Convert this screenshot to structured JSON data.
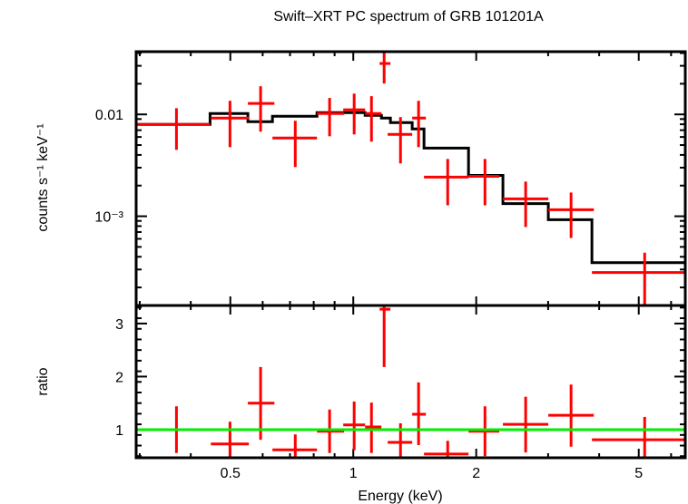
{
  "chart_data": [
    {
      "type": "scatter",
      "panel": "spectrum",
      "title": "Swift–XRT PC spectrum of GRB 101201A",
      "xlabel": "Energy (keV)",
      "ylabel": "counts s⁻¹ keV⁻¹",
      "xscale": "log",
      "yscale": "log",
      "xlim": [
        0.294,
        6.5
      ],
      "ylim": [
        0.000133,
        0.0413
      ],
      "yticks": [
        {
          "value": 0.01,
          "label": "0.01"
        },
        {
          "value": 0.001,
          "label": "10⁻³"
        }
      ],
      "grid": false,
      "series": [
        {
          "name": "data",
          "color": "#ff0000",
          "style": "crosses",
          "points": [
            {
              "x": 0.369,
              "xlo": 0.294,
              "xhi": 0.446,
              "y": 0.00798,
              "ylo": 0.00449,
              "yhi": 0.0115
            },
            {
              "x": 0.499,
              "xlo": 0.448,
              "xhi": 0.555,
              "y": 0.00921,
              "ylo": 0.00477,
              "yhi": 0.0136
            },
            {
              "x": 0.593,
              "xlo": 0.552,
              "xhi": 0.641,
              "y": 0.0128,
              "ylo": 0.00677,
              "yhi": 0.0189
            },
            {
              "x": 0.721,
              "xlo": 0.634,
              "xhi": 0.815,
              "y": 0.00586,
              "ylo": 0.00304,
              "yhi": 0.00866
            },
            {
              "x": 0.875,
              "xlo": 0.815,
              "xhi": 0.95,
              "y": 0.0102,
              "ylo": 0.0061,
              "yhi": 0.0145
            },
            {
              "x": 1.005,
              "xlo": 0.945,
              "xhi": 1.069,
              "y": 0.0111,
              "ylo": 0.00636,
              "yhi": 0.016
            },
            {
              "x": 1.108,
              "xlo": 1.069,
              "xhi": 1.172,
              "y": 0.0102,
              "ylo": 0.0054,
              "yhi": 0.0151
            },
            {
              "x": 1.19,
              "xlo": 1.16,
              "xhi": 1.233,
              "y": 0.0316,
              "ylo": 0.0201,
              "yhi": 0.0431
            },
            {
              "x": 1.305,
              "xlo": 1.214,
              "xhi": 1.394,
              "y": 0.00636,
              "ylo": 0.0033,
              "yhi": 0.0094
            },
            {
              "x": 1.445,
              "xlo": 1.394,
              "xhi": 1.506,
              "y": 0.00921,
              "ylo": 0.00477,
              "yhi": 0.0136
            },
            {
              "x": 1.703,
              "xlo": 1.49,
              "xhi": 1.915,
              "y": 0.00242,
              "ylo": 0.00128,
              "yhi": 0.00365
            },
            {
              "x": 2.101,
              "xlo": 1.915,
              "xhi": 2.278,
              "y": 0.00247,
              "ylo": 0.00128,
              "yhi": 0.00365
            },
            {
              "x": 2.643,
              "xlo": 2.325,
              "xhi": 3.003,
              "y": 0.00148,
              "ylo": 0.000784,
              "yhi": 0.00219
            },
            {
              "x": 3.414,
              "xlo": 3.003,
              "xhi": 3.882,
              "y": 0.00116,
              "ylo": 0.000612,
              "yhi": 0.00171
            },
            {
              "x": 5.17,
              "xlo": 3.84,
              "xhi": 6.51,
              "y": 0.00028,
              "ylo": 0.000133,
              "yhi": 0.000439
            }
          ]
        },
        {
          "name": "model",
          "color": "#000000",
          "style": "step",
          "steps": [
            {
              "xlo": 0.294,
              "xhi": 0.446,
              "y": 0.00798
            },
            {
              "xlo": 0.446,
              "xhi": 0.552,
              "y": 0.0102
            },
            {
              "xlo": 0.552,
              "xhi": 0.634,
              "y": 0.00848
            },
            {
              "xlo": 0.634,
              "xhi": 0.815,
              "y": 0.0096
            },
            {
              "xlo": 0.815,
              "xhi": 0.945,
              "y": 0.0104
            },
            {
              "xlo": 0.945,
              "xhi": 1.069,
              "y": 0.0104
            },
            {
              "xlo": 1.069,
              "xhi": 1.172,
              "y": 0.0098
            },
            {
              "xlo": 1.172,
              "xhi": 1.233,
              "y": 0.00921
            },
            {
              "xlo": 1.233,
              "xhi": 1.394,
              "y": 0.0083
            },
            {
              "xlo": 1.394,
              "xhi": 1.49,
              "y": 0.0072
            },
            {
              "xlo": 1.49,
              "xhi": 1.915,
              "y": 0.00467
            },
            {
              "xlo": 1.915,
              "xhi": 2.325,
              "y": 0.00252
            },
            {
              "xlo": 2.325,
              "xhi": 3.003,
              "y": 0.00133
            },
            {
              "xlo": 3.003,
              "xhi": 3.84,
              "y": 0.000925
            },
            {
              "xlo": 3.84,
              "xhi": 6.5,
              "y": 0.00035
            }
          ]
        }
      ]
    },
    {
      "type": "scatter",
      "panel": "ratio",
      "xlabel": "Energy (keV)",
      "ylabel": "ratio",
      "xscale": "log",
      "yscale": "linear",
      "xlim": [
        0.294,
        6.5
      ],
      "ylim": [
        0.47,
        3.34
      ],
      "xticks": [
        {
          "value": 0.5,
          "label": "0.5"
        },
        {
          "value": 1,
          "label": "1"
        },
        {
          "value": 2,
          "label": "2"
        },
        {
          "value": 5,
          "label": "5"
        }
      ],
      "yticks": [
        {
          "value": 1,
          "label": "1"
        },
        {
          "value": 2,
          "label": "2"
        },
        {
          "value": 3,
          "label": "3"
        }
      ],
      "grid": false,
      "reference_line": {
        "y": 1,
        "color": "#00ee00"
      },
      "series": [
        {
          "name": "ratio",
          "color": "#ff0000",
          "style": "crosses",
          "points": [
            {
              "x": 0.369,
              "xlo": 0.294,
              "xhi": 0.446,
              "y": 1.0,
              "ylo": 0.56,
              "yhi": 1.44
            },
            {
              "x": 0.499,
              "xlo": 0.448,
              "xhi": 0.555,
              "y": 0.73,
              "ylo": 0.3,
              "yhi": 1.15
            },
            {
              "x": 0.593,
              "xlo": 0.552,
              "xhi": 0.641,
              "y": 1.5,
              "ylo": 0.81,
              "yhi": 2.18
            },
            {
              "x": 0.721,
              "xlo": 0.634,
              "xhi": 0.815,
              "y": 0.62,
              "ylo": 0.3,
              "yhi": 0.91
            },
            {
              "x": 0.875,
              "xlo": 0.815,
              "xhi": 0.95,
              "y": 0.97,
              "ylo": 0.56,
              "yhi": 1.38
            },
            {
              "x": 1.005,
              "xlo": 0.945,
              "xhi": 1.069,
              "y": 1.09,
              "ylo": 0.61,
              "yhi": 1.53
            },
            {
              "x": 1.108,
              "xlo": 1.069,
              "xhi": 1.172,
              "y": 1.05,
              "ylo": 0.56,
              "yhi": 1.51
            },
            {
              "x": 1.19,
              "xlo": 1.16,
              "xhi": 1.233,
              "y": 3.27,
              "ylo": 2.18,
              "yhi": 4.3
            },
            {
              "x": 1.305,
              "xlo": 1.214,
              "xhi": 1.394,
              "y": 0.76,
              "ylo": 0.3,
              "yhi": 1.12
            },
            {
              "x": 1.445,
              "xlo": 1.394,
              "xhi": 1.506,
              "y": 1.29,
              "ylo": 0.71,
              "yhi": 1.89
            },
            {
              "x": 1.703,
              "xlo": 1.49,
              "xhi": 1.915,
              "y": 0.54,
              "ylo": 0.3,
              "yhi": 0.79
            },
            {
              "x": 2.101,
              "xlo": 1.915,
              "xhi": 2.278,
              "y": 0.97,
              "ylo": 0.5,
              "yhi": 1.44
            },
            {
              "x": 2.643,
              "xlo": 2.325,
              "xhi": 3.003,
              "y": 1.1,
              "ylo": 0.57,
              "yhi": 1.62
            },
            {
              "x": 3.414,
              "xlo": 3.003,
              "xhi": 3.882,
              "y": 1.27,
              "ylo": 0.68,
              "yhi": 1.85
            },
            {
              "x": 5.17,
              "xlo": 3.84,
              "xhi": 6.51,
              "y": 0.81,
              "ylo": 0.3,
              "yhi": 1.24
            }
          ]
        }
      ]
    }
  ],
  "labels": {
    "title": "Swift–XRT PC spectrum of GRB 101201A",
    "xlabel": "Energy (keV)",
    "ylabel_top": "counts s⁻¹ keV⁻¹",
    "ylabel_bottom": "ratio"
  }
}
